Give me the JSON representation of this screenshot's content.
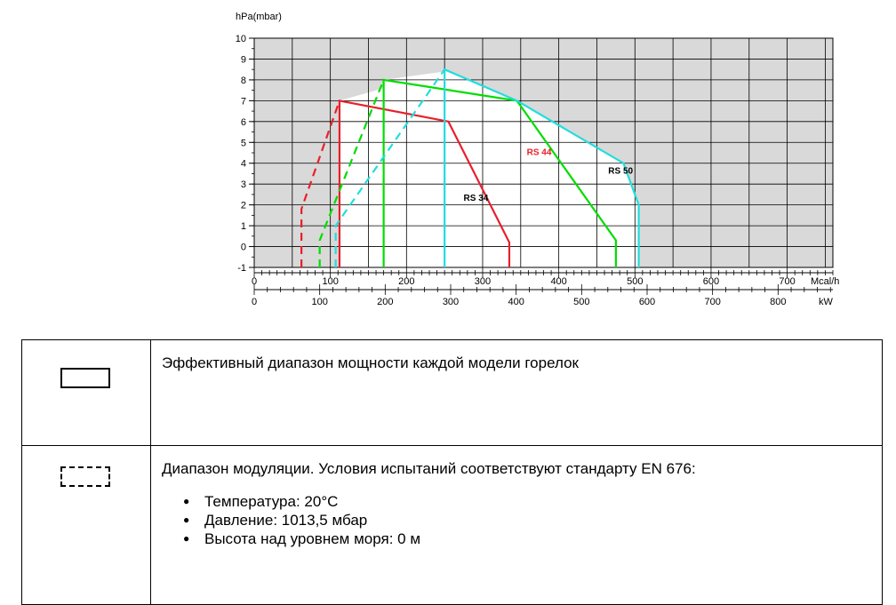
{
  "chart_data": {
    "type": "line",
    "ylabel": "hPa(mbar)",
    "x_unit_top": "Mcal/h",
    "x_unit_bottom": "kW",
    "ylim": [
      -1,
      10
    ],
    "yticks": [
      "-1",
      "0",
      "1",
      "2",
      "3",
      "4",
      "5",
      "6",
      "7",
      "8",
      "9",
      "10"
    ],
    "xlim_mcal": [
      0,
      760
    ],
    "xticks_mcal": [
      "0",
      "100",
      "200",
      "300",
      "400",
      "500",
      "600",
      "700"
    ],
    "xlim_kw": [
      0,
      883.7
    ],
    "xticks_kw": [
      "0",
      "100",
      "200",
      "300",
      "400",
      "500",
      "600",
      "700",
      "800"
    ],
    "grid": true,
    "series": [
      {
        "name": "RS 34",
        "color": "#e8202a",
        "effective_range": [
          [
            112,
            -1
          ],
          [
            112,
            7
          ],
          [
            255,
            6
          ],
          [
            335,
            0.2
          ],
          [
            335,
            -1
          ]
        ],
        "modulation_range": [
          [
            62,
            -1
          ],
          [
            62,
            1.8
          ],
          [
            112,
            7
          ]
        ]
      },
      {
        "name": "RS 44",
        "color": "#00dd00",
        "effective_range": [
          [
            170,
            -1
          ],
          [
            170,
            8
          ],
          [
            345,
            7
          ],
          [
            475,
            0.3
          ],
          [
            475,
            -1
          ]
        ],
        "modulation_range": [
          [
            86,
            -1
          ],
          [
            86,
            0.3
          ],
          [
            170,
            8
          ]
        ]
      },
      {
        "name": "RS 50",
        "color": "#22dddd",
        "effective_range": [
          [
            250,
            -1
          ],
          [
            250,
            8.5
          ],
          [
            345,
            7
          ],
          [
            485,
            4
          ],
          [
            505,
            2
          ],
          [
            505,
            -1
          ]
        ],
        "modulation_range": [
          [
            107,
            -1
          ],
          [
            107,
            1
          ],
          [
            250,
            8.5
          ]
        ]
      }
    ],
    "annotations": [
      {
        "text": "RS 34",
        "x": 275,
        "y": 2.2,
        "color": "#000000"
      },
      {
        "text": "RS 44",
        "x": 358,
        "y": 4.4,
        "color": "#e8202a"
      },
      {
        "text": "RS 50",
        "x": 465,
        "y": 3.5,
        "color": "#000000"
      }
    ],
    "background": {
      "outside_range_fill": "#d9d9d9",
      "inside_range_fill": "#ffffff"
    }
  },
  "legend": {
    "solid_text": "Эффективный диапазон мощности каждой модели горелок",
    "dashed_text": "Диапазон модуляции.  Условия испытаний соответствуют стандарту EN 676:",
    "conditions": [
      "Температура: 20°C",
      "Давление: 1013,5 мбар",
      "Высота над уровнем моря: 0 м"
    ]
  }
}
